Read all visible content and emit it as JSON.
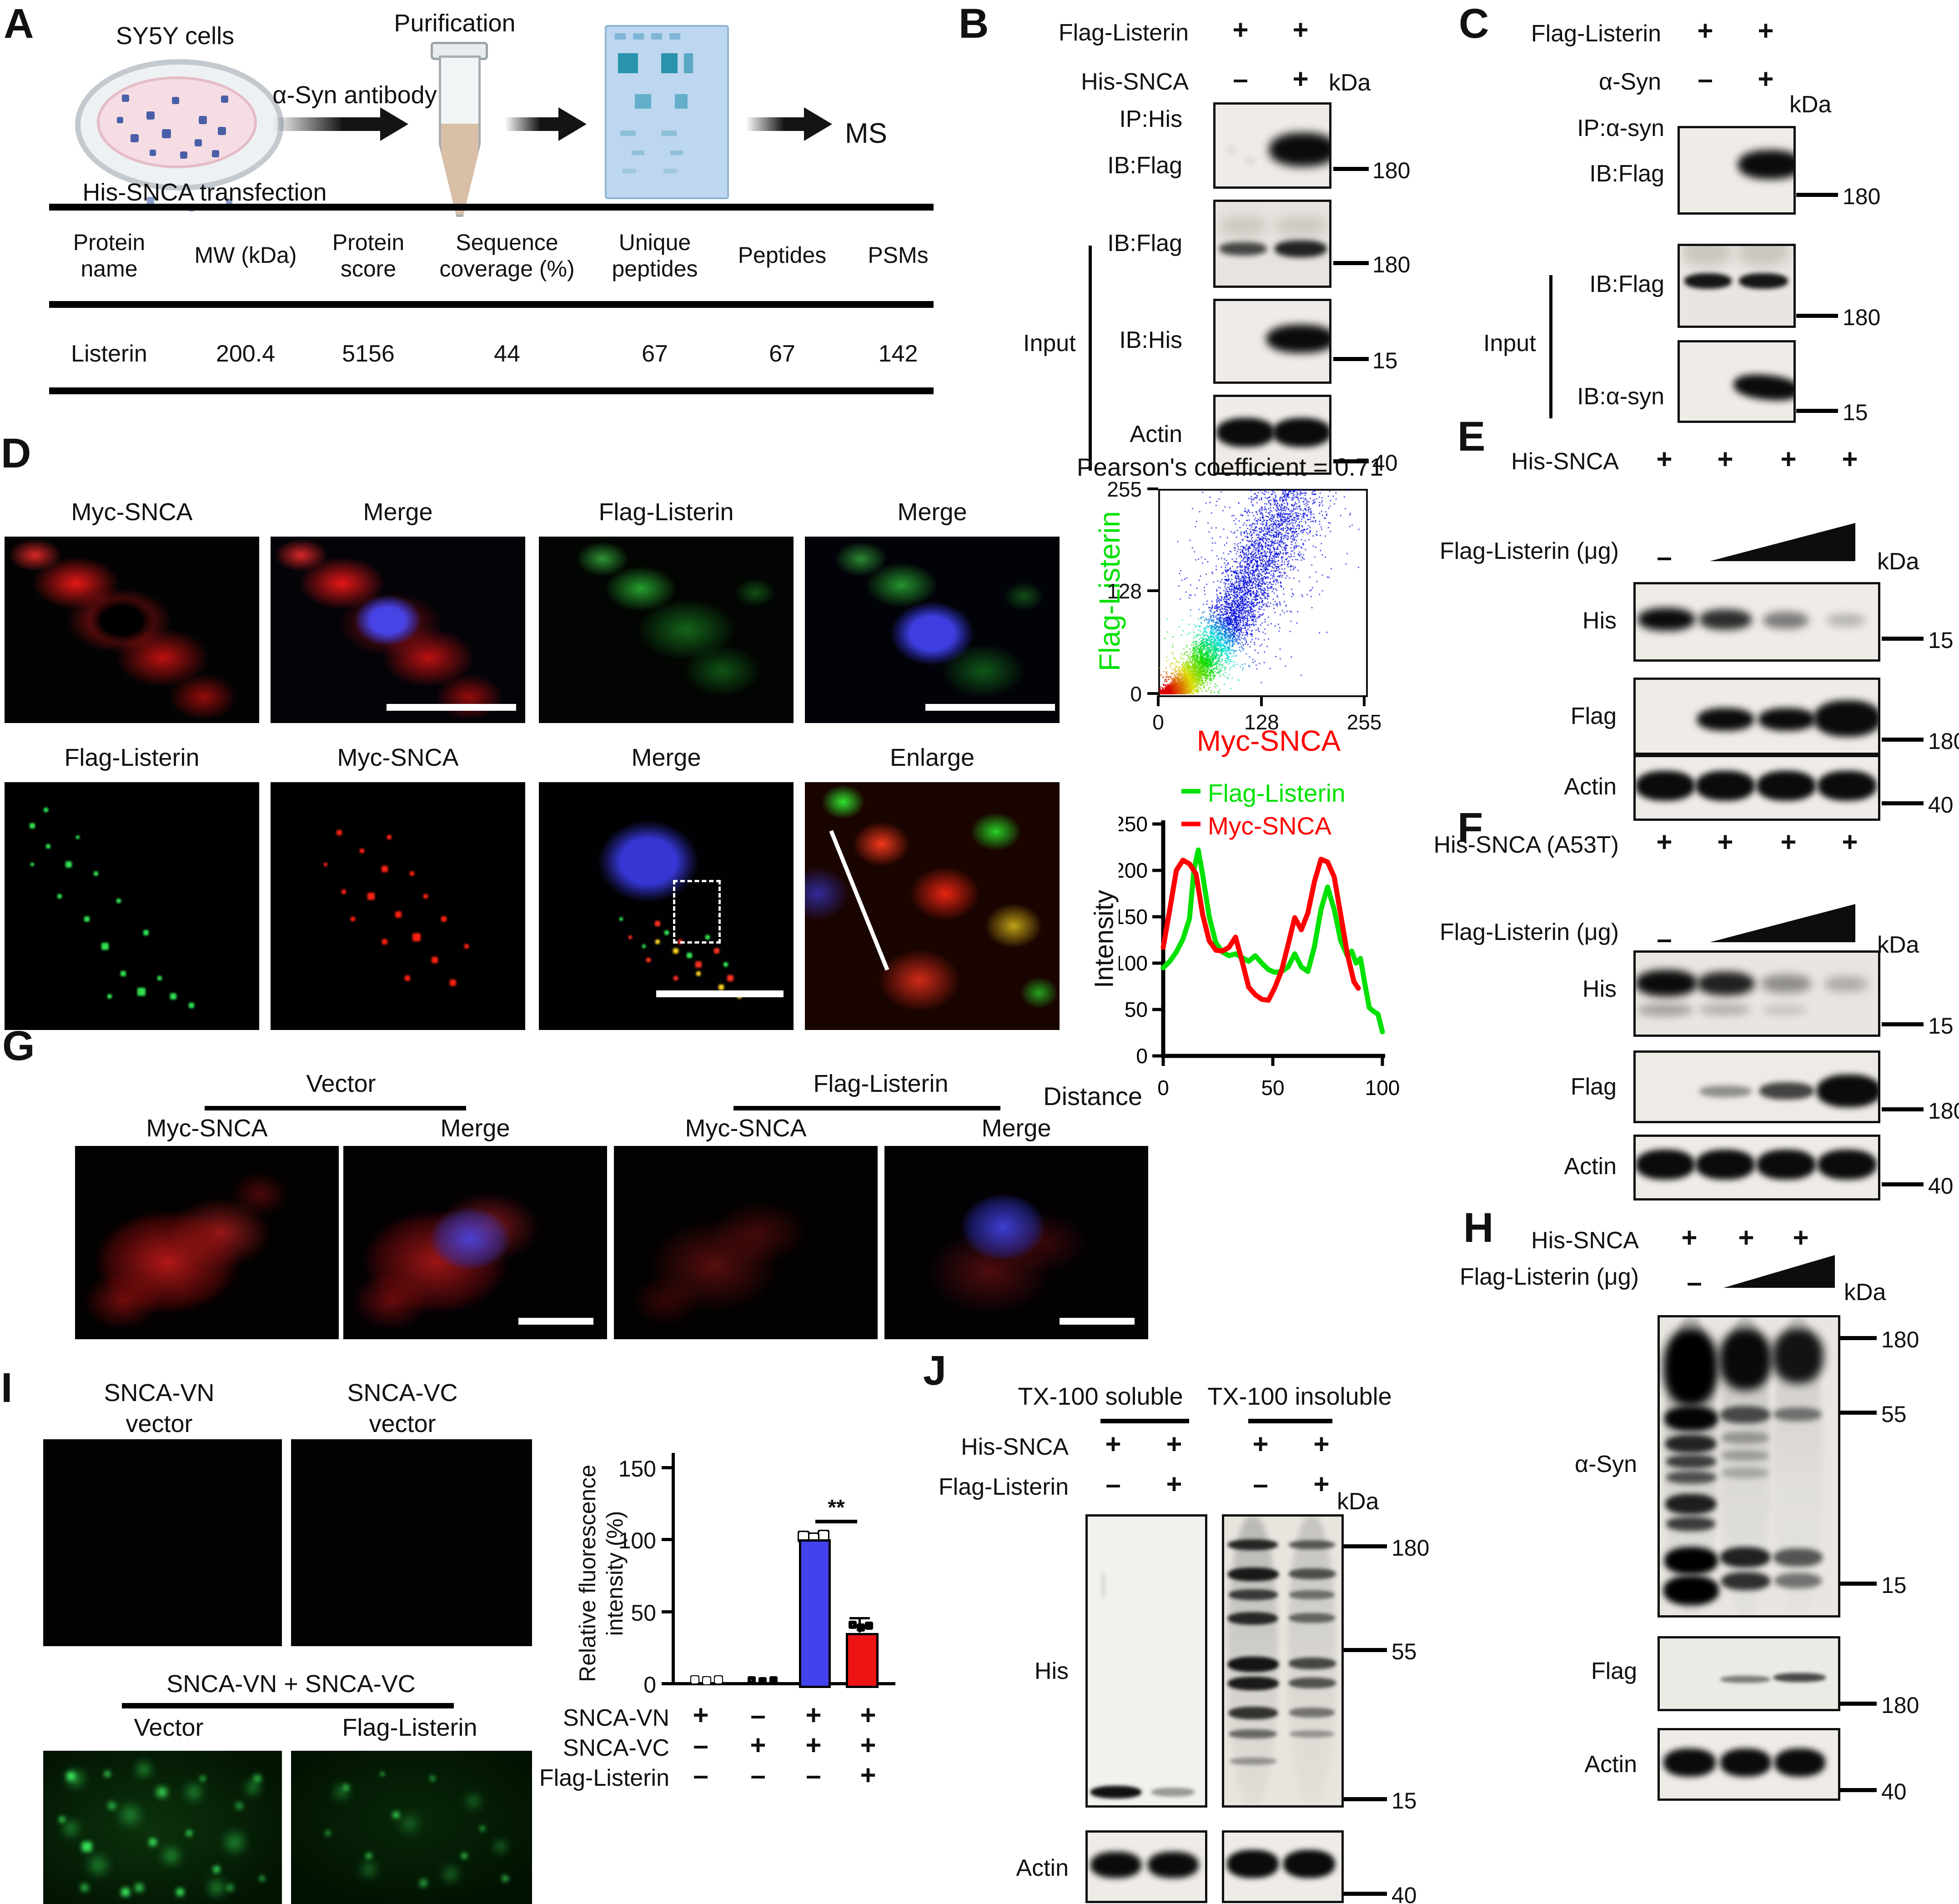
{
  "panels": {
    "A": {
      "label": "A",
      "cells": "SY5Y cells",
      "antibody": "α-Syn antibody",
      "transfection": "His-SNCA transfection",
      "purification": "Purification",
      "ms": "MS",
      "table": {
        "headers": [
          "Protein name",
          "MW (kDa)",
          "Protein score",
          "Sequence coverage (%)",
          "Unique peptides",
          "Peptides",
          "PSMs"
        ],
        "row": [
          "Listerin",
          "200.4",
          "5156",
          "44",
          "67",
          "67",
          "142"
        ]
      }
    },
    "B": {
      "label": "B",
      "kda": "kDa",
      "input": "Input",
      "cond_rows": [
        {
          "label": "Flag-Listerin",
          "symbols": [
            "+",
            "+"
          ]
        },
        {
          "label": "His-SNCA",
          "symbols": [
            "–",
            "+"
          ]
        }
      ],
      "ip_label": "IP:His",
      "ib1_label": "IB:Flag",
      "m1": "180",
      "input_blots": [
        {
          "label": "IB:Flag",
          "marker": "180"
        },
        {
          "label": "IB:His",
          "marker": "15"
        },
        {
          "label": "Actin",
          "marker": "40"
        }
      ]
    },
    "C": {
      "label": "C",
      "kda": "kDa",
      "input": "Input",
      "cond_rows": [
        {
          "label": "Flag-Listerin",
          "symbols": [
            "+",
            "+"
          ]
        },
        {
          "label": "α-Syn",
          "symbols": [
            "–",
            "+"
          ]
        }
      ],
      "ip_label": "IP:α-syn",
      "ib1_label": "IB:Flag",
      "m1": "180",
      "input_blots": [
        {
          "label": "IB:Flag",
          "marker": "180"
        },
        {
          "label": "IB:α-syn",
          "marker": "15"
        }
      ]
    },
    "D": {
      "label": "D",
      "row1_headers": [
        "Myc-SNCA",
        "Merge",
        "Flag-Listerin",
        "Merge"
      ],
      "row2_headers": [
        "Flag-Listerin",
        "Myc-SNCA",
        "Merge",
        "Enlarge"
      ]
    },
    "E": {
      "label": "E",
      "kda": "kDa",
      "minus": "–",
      "row1": {
        "label": "His-SNCA",
        "symbols": [
          "+",
          "+",
          "+",
          "+"
        ]
      },
      "row2_label": "Flag-Listerin (μg)",
      "blots": [
        {
          "label": "His",
          "marker": "15"
        },
        {
          "label": "Flag",
          "marker": "180"
        },
        {
          "label": "Actin",
          "marker": "40"
        }
      ]
    },
    "F": {
      "label": "F",
      "kda": "kDa",
      "minus": "–",
      "row1": {
        "label": "His-SNCA (A53T)",
        "symbols": [
          "+",
          "+",
          "+",
          "+"
        ]
      },
      "row2_label": "Flag-Listerin (μg)",
      "blots": [
        {
          "label": "His",
          "marker": "15"
        },
        {
          "label": "Flag",
          "marker": "180"
        },
        {
          "label": "Actin",
          "marker": "40"
        }
      ]
    },
    "G": {
      "label": "G",
      "groups": [
        "Vector",
        "Flag-Listerin"
      ],
      "headers": [
        "Myc-SNCA",
        "Merge",
        "Myc-SNCA",
        "Merge"
      ]
    },
    "H": {
      "label": "H",
      "kda": "kDa",
      "minus": "–",
      "row1": {
        "label": "His-SNCA",
        "symbols": [
          "+",
          "+",
          "+"
        ]
      },
      "row2_label": "Flag-Listerin (μg)",
      "blot1": {
        "label": "α-Syn",
        "markers": [
          "180",
          "55",
          "15"
        ]
      },
      "blot2": {
        "label": "Flag",
        "marker": "180"
      },
      "blot3": {
        "label": "Actin",
        "marker": "40"
      }
    },
    "I": {
      "label": "I",
      "top_groups": [
        "SNCA-VN\nvector",
        "SNCA-VC\nvector"
      ],
      "combo_title": "SNCA-VN + SNCA-VC",
      "combo_groups": [
        "Vector",
        "Flag-Listerin"
      ]
    },
    "J": {
      "label": "J",
      "kda": "kDa",
      "groups": [
        "TX-100 soluble",
        "TX-100 insoluble"
      ],
      "cond_rows": [
        {
          "label": "His-SNCA",
          "symbols": [
            "+",
            "+",
            "+",
            "+"
          ]
        },
        {
          "label": "Flag-Listerin",
          "symbols": [
            "–",
            "+",
            "–",
            "+"
          ]
        }
      ],
      "his": "His",
      "actin": "Actin",
      "markers": [
        "180",
        "55",
        "15",
        "40"
      ]
    }
  },
  "chart_data": [
    {
      "type": "scatter",
      "title": "Pearson's coefficient = 0.71",
      "xlabel": "Myc-SNCA",
      "ylabel": "Flag-Listerin",
      "xlim": [
        0,
        255
      ],
      "ylim": [
        0,
        255
      ],
      "xticks": [
        0,
        128,
        255
      ],
      "yticks": [
        255,
        128,
        0
      ],
      "pearson": 0.71,
      "point_count": 18000,
      "density_colors": [
        "#ff0000",
        "#ff9900",
        "#ffee00",
        "#22cc22",
        "#00cccc",
        "#2222cc"
      ],
      "note": "density scatter rising from origin toward (150,255), sparse blue cloud upper right"
    },
    {
      "type": "line",
      "xlabel": "Distance",
      "ylabel": "Intensity",
      "xlim": [
        0,
        100
      ],
      "ylim": [
        0,
        250
      ],
      "xticks": [
        0,
        50,
        100
      ],
      "yticks": [
        0,
        50,
        100,
        150,
        200,
        250
      ],
      "legend_position": "top",
      "series": [
        {
          "name": "Flag-Listerin",
          "color": "#00e100",
          "x": [
            0,
            3,
            6,
            9,
            12,
            14,
            16,
            18,
            21,
            24,
            27,
            30,
            33,
            36,
            39,
            42,
            45,
            48,
            51,
            54,
            57,
            60,
            63,
            66,
            69,
            72,
            75,
            78,
            81,
            84,
            86,
            88,
            90,
            92,
            94,
            96,
            98,
            100
          ],
          "y": [
            95,
            102,
            112,
            126,
            148,
            200,
            222,
            195,
            150,
            122,
            112,
            108,
            110,
            106,
            102,
            108,
            100,
            93,
            90,
            91,
            96,
            110,
            96,
            91,
            118,
            158,
            182,
            158,
            124,
            108,
            113,
            100,
            105,
            78,
            52,
            48,
            45,
            26
          ]
        },
        {
          "name": "Myc-SNCA",
          "color": "#ff0000",
          "x": [
            0,
            3,
            6,
            9,
            12,
            15,
            18,
            21,
            24,
            27,
            30,
            33,
            36,
            39,
            42,
            45,
            48,
            51,
            54,
            57,
            60,
            63,
            66,
            69,
            72,
            75,
            78,
            81,
            84,
            87,
            89
          ],
          "y": [
            117,
            158,
            200,
            211,
            207,
            196,
            152,
            124,
            114,
            113,
            117,
            128,
            102,
            74,
            66,
            61,
            60,
            74,
            92,
            120,
            149,
            136,
            154,
            188,
            212,
            209,
            193,
            152,
            110,
            80,
            73
          ]
        }
      ]
    },
    {
      "type": "bar",
      "ylabel": "Relative fluorescence\nintensity (%)",
      "ylim": [
        0,
        150
      ],
      "yticks": [
        0,
        50,
        100,
        150
      ],
      "categories": [
        "SNCA-VN",
        "SNCA-VC",
        "SNCA-VN+SNCA-VC",
        "SNCA-VN+SNCA-VC+Flag-Listerin"
      ],
      "values": [
        0,
        0,
        100,
        35
      ],
      "bar_colors": [
        "none",
        "none",
        "#4343ee",
        "#ee1414"
      ],
      "significance": "**",
      "conditions": [
        {
          "label": "SNCA-VN",
          "symbols": [
            "+",
            "–",
            "+",
            "+"
          ]
        },
        {
          "label": "SNCA-VC",
          "symbols": [
            "–",
            "+",
            "+",
            "+"
          ]
        },
        {
          "label": "Flag-Listerin",
          "symbols": [
            "–",
            "–",
            "–",
            "+"
          ]
        }
      ]
    }
  ]
}
